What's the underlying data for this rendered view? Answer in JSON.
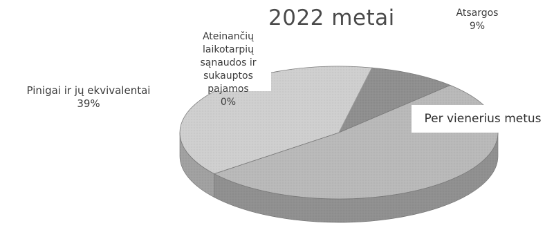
{
  "chart_data": {
    "type": "pie",
    "title": "2022 metai",
    "style": "3d",
    "slices": [
      {
        "label_lines": [
          "Atsargos"
        ],
        "percent": "9%",
        "value": 9,
        "color": "#8f8f8f"
      },
      {
        "label_lines": [
          "Per vienerius metus"
        ],
        "percent": "",
        "value": 52,
        "color": "#b9b9b9"
      },
      {
        "label_lines": [
          "Pinigai ir jų ekvivalentai"
        ],
        "percent": "39%",
        "value": 39,
        "color": "#cfcfcf"
      },
      {
        "label_lines": [
          "Ateinančių laikotarpių",
          "sąnaudos ir sukauptos",
          "pajamos"
        ],
        "percent": "0%",
        "value": 0,
        "color": "#dcdcdc"
      }
    ]
  }
}
